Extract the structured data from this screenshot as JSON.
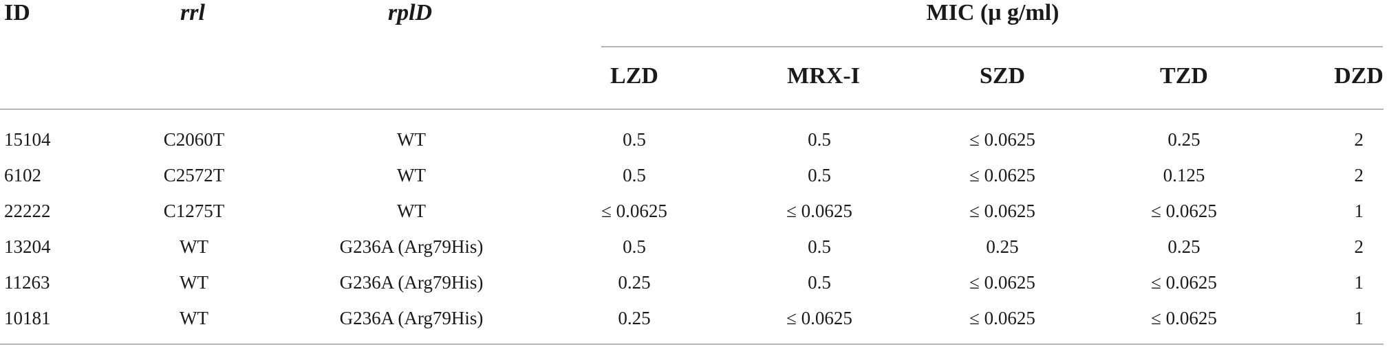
{
  "table": {
    "headers": {
      "id": "ID",
      "rrl": "rrl",
      "rplD": "rplD",
      "mic_group": "MIC (μ g/ml)",
      "lzd": "LZD",
      "mrx": "MRX-I",
      "szd": "SZD",
      "tzd": "TZD",
      "dzd": "DZD"
    },
    "rows": [
      {
        "id": "15104",
        "rrl": "C2060T",
        "rplD": "WT",
        "lzd": "0.5",
        "mrx": "0.5",
        "szd": "≤ 0.0625",
        "tzd": "0.25",
        "dzd": "2"
      },
      {
        "id": "6102",
        "rrl": "C2572T",
        "rplD": "WT",
        "lzd": "0.5",
        "mrx": "0.5",
        "szd": "≤ 0.0625",
        "tzd": "0.125",
        "dzd": "2"
      },
      {
        "id": "22222",
        "rrl": "C1275T",
        "rplD": "WT",
        "lzd": "≤ 0.0625",
        "mrx": "≤ 0.0625",
        "szd": "≤ 0.0625",
        "tzd": "≤ 0.0625",
        "dzd": "1"
      },
      {
        "id": "13204",
        "rrl": "WT",
        "rplD": "G236A (Arg79His)",
        "lzd": "0.5",
        "mrx": "0.5",
        "szd": "0.25",
        "tzd": "0.25",
        "dzd": "2"
      },
      {
        "id": "11263",
        "rrl": "WT",
        "rplD": "G236A (Arg79His)",
        "lzd": "0.25",
        "mrx": "0.5",
        "szd": "≤ 0.0625",
        "tzd": "≤ 0.0625",
        "dzd": "1"
      },
      {
        "id": "10181",
        "rrl": "WT",
        "rplD": "G236A (Arg79His)",
        "lzd": "0.25",
        "mrx": "≤ 0.0625",
        "szd": "≤ 0.0625",
        "tzd": "≤ 0.0625",
        "dzd": "1"
      }
    ]
  }
}
